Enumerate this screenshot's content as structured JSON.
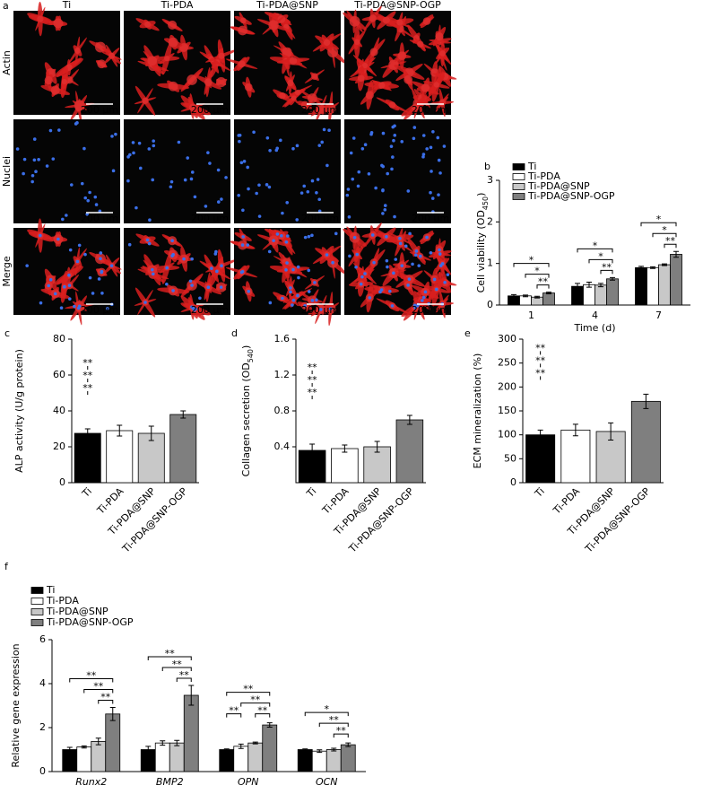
{
  "panel_a": {
    "label": "a",
    "columns": [
      "Ti",
      "Ti-PDA",
      "Ti-PDA@SNP",
      "Ti-PDA@SNP-OGP"
    ],
    "rows": [
      "Actin",
      "Nuclei",
      "Merge"
    ],
    "scale_bar": "200 μm"
  },
  "chart_data": [
    {
      "type": "bar",
      "panel_label": "b",
      "ylabel": [
        "Cell viability (OD",
        "450",
        ")"
      ],
      "xlabel": "Time (d)",
      "categories": [
        "1",
        "4",
        "7"
      ],
      "series": [
        {
          "name": "Ti",
          "color": "#000000",
          "values": [
            0.22,
            0.45,
            0.9
          ],
          "errors": [
            0.03,
            0.07,
            0.03
          ]
        },
        {
          "name": "Ti-PDA",
          "color": "#ffffff",
          "values": [
            0.22,
            0.49,
            0.9
          ],
          "errors": [
            0.02,
            0.06,
            0.02
          ]
        },
        {
          "name": "Ti-PDA@SNP",
          "color": "#c8c8c8",
          "values": [
            0.19,
            0.48,
            0.97
          ],
          "errors": [
            0.02,
            0.04,
            0.02
          ]
        },
        {
          "name": "Ti-PDA@SNP-OGP",
          "color": "#7f7f7f",
          "values": [
            0.29,
            0.63,
            1.22
          ],
          "errors": [
            0.02,
            0.03,
            0.07
          ]
        }
      ],
      "ylim": [
        0,
        3
      ],
      "yticks": [
        0,
        1,
        2,
        3
      ],
      "legend": "upper left",
      "annotations": [
        "*",
        "*",
        "**",
        "*",
        "*",
        "**",
        "*",
        "*",
        "**"
      ]
    },
    {
      "type": "bar",
      "panel_label": "c",
      "ylabel": [
        "ALP activity (U/g protein)"
      ],
      "categories": [
        "Ti",
        "Ti-PDA",
        "Ti-PDA@SNP",
        "Ti-PDA@SNP-OGP"
      ],
      "values": [
        27.5,
        29,
        27.5,
        38
      ],
      "errors": [
        2.5,
        3,
        4,
        2
      ],
      "colors": [
        "#000000",
        "#ffffff",
        "#c8c8c8",
        "#7f7f7f"
      ],
      "ylim": [
        0,
        80
      ],
      "yticks": [
        0,
        20,
        40,
        60,
        80
      ],
      "annotations": [
        "**",
        "**",
        "**"
      ]
    },
    {
      "type": "bar",
      "panel_label": "d",
      "ylabel": [
        "Collagen secretion (OD",
        "540",
        ")"
      ],
      "categories": [
        "Ti",
        "Ti-PDA",
        "Ti-PDA@SNP",
        "Ti-PDA@SNP-OGP"
      ],
      "values": [
        0.36,
        0.38,
        0.4,
        0.7
      ],
      "errors": [
        0.07,
        0.04,
        0.06,
        0.05
      ],
      "colors": [
        "#000000",
        "#ffffff",
        "#c8c8c8",
        "#7f7f7f"
      ],
      "ylim": [
        0,
        1.6
      ],
      "yticks": [
        0.4,
        0.8,
        1.2,
        1.6
      ],
      "annotations": [
        "**",
        "**",
        "**"
      ]
    },
    {
      "type": "bar",
      "panel_label": "e",
      "ylabel": [
        "ECM mineralization (%)"
      ],
      "categories": [
        "Ti",
        "Ti-PDA",
        "Ti-PDA@SNP",
        "Ti-PDA@SNP-OGP"
      ],
      "values": [
        100,
        110,
        107,
        170
      ],
      "errors": [
        10,
        12,
        18,
        15
      ],
      "colors": [
        "#000000",
        "#ffffff",
        "#c8c8c8",
        "#7f7f7f"
      ],
      "ylim": [
        0,
        300
      ],
      "yticks": [
        0,
        50,
        100,
        150,
        200,
        250,
        300
      ],
      "annotations": [
        "**",
        "**",
        "**"
      ]
    },
    {
      "type": "bar",
      "panel_label": "f",
      "ylabel": [
        "Relative gene expression"
      ],
      "categories": [
        "Runx2",
        "BMP2",
        "OPN",
        "OCN"
      ],
      "series": [
        {
          "name": "Ti",
          "color": "#000000",
          "values": [
            1.0,
            1.0,
            1.0,
            1.0
          ],
          "errors": [
            0.1,
            0.15,
            0.03,
            0.03
          ]
        },
        {
          "name": "Ti-PDA",
          "color": "#ffffff",
          "values": [
            1.12,
            1.3,
            1.15,
            0.93
          ],
          "errors": [
            0.05,
            0.1,
            0.1,
            0.06
          ]
        },
        {
          "name": "Ti-PDA@SNP",
          "color": "#c8c8c8",
          "values": [
            1.37,
            1.3,
            1.3,
            1.0
          ],
          "errors": [
            0.15,
            0.12,
            0.04,
            0.06
          ]
        },
        {
          "name": "Ti-PDA@SNP-OGP",
          "color": "#7f7f7f",
          "values": [
            2.62,
            3.47,
            2.12,
            1.22
          ],
          "errors": [
            0.3,
            0.45,
            0.1,
            0.08
          ]
        }
      ],
      "ylim": [
        0,
        6
      ],
      "yticks": [
        0,
        2,
        4,
        6
      ],
      "legend": "upper left",
      "annotations": [
        "**",
        "**",
        "**",
        "**",
        "**",
        "**",
        "**",
        "**",
        "**",
        "**",
        "*",
        "**",
        "**"
      ]
    }
  ]
}
